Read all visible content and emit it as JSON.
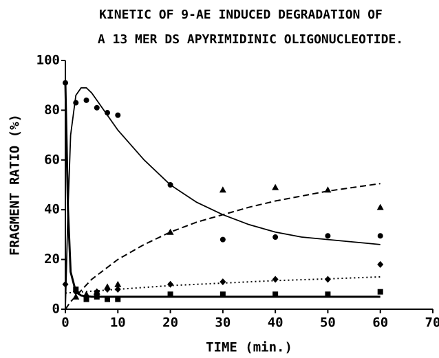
{
  "chart_data": {
    "type": "scatter",
    "title": [
      "KINETIC OF 9-AE INDUCED DEGRADATION OF",
      "A 13 MER DS APYRIMIDINIC OLIGONUCLEOTIDE."
    ],
    "x_label": "TIME (min.)",
    "y_label": "FRAGMENT RATIO (%)",
    "xlim": [
      0,
      70
    ],
    "xticks": [
      0,
      10,
      20,
      30,
      40,
      50,
      60,
      70
    ],
    "ylim": [
      0,
      100
    ],
    "yticks": [
      0,
      20,
      40,
      60,
      80,
      100
    ],
    "color": "#000000",
    "series": [
      {
        "marker": "circle",
        "x": [
          0,
          2,
          4,
          6,
          8,
          10,
          20,
          30,
          40,
          50,
          60
        ],
        "values": [
          91,
          83,
          84,
          81,
          79,
          78,
          50,
          28,
          29,
          29.5,
          29.5
        ]
      },
      {
        "marker": "triangle",
        "x": [
          2,
          4,
          6,
          8,
          10,
          20,
          30,
          40,
          50,
          60
        ],
        "values": [
          5,
          6,
          7,
          9,
          10,
          31,
          48,
          49,
          48,
          41
        ]
      },
      {
        "marker": "diamond",
        "x": [
          0,
          2,
          4,
          6,
          8,
          10,
          20,
          30,
          40,
          50,
          60
        ],
        "values": [
          10,
          7,
          5,
          7,
          8,
          8,
          10,
          11,
          12,
          12,
          18
        ]
      },
      {
        "marker": "square",
        "x": [
          2,
          4,
          6,
          8,
          10,
          20,
          30,
          40,
          50,
          60
        ],
        "values": [
          8,
          4,
          5,
          4,
          4,
          6,
          6,
          6,
          6,
          7
        ]
      }
    ],
    "curves": [
      {
        "style": "solid",
        "x": [
          0,
          0.5,
          1,
          2,
          3,
          4,
          5,
          6,
          8,
          10,
          15,
          20,
          25,
          30,
          35,
          40,
          45,
          50,
          55,
          60
        ],
        "values": [
          0,
          40,
          70,
          86,
          89,
          89,
          87,
          84,
          78,
          72,
          60,
          50,
          43,
          38,
          34,
          31,
          29,
          28,
          27,
          26
        ]
      },
      {
        "style": "bold",
        "x": [
          0,
          0.5,
          1,
          2,
          3,
          5,
          10,
          20,
          30,
          40,
          50,
          60
        ],
        "values": [
          91,
          40,
          15,
          7,
          5.5,
          5,
          5,
          5,
          5,
          5,
          5,
          5
        ]
      },
      {
        "style": "dashed",
        "x": [
          0,
          1,
          5,
          10,
          15,
          20,
          25,
          30,
          35,
          40,
          45,
          50,
          55,
          60
        ],
        "values": [
          0,
          3,
          12,
          20,
          26,
          31,
          35,
          38,
          41,
          43.5,
          45.5,
          47.5,
          49,
          50.5
        ]
      },
      {
        "style": "dotted",
        "x": [
          0,
          10,
          20,
          30,
          40,
          50,
          60
        ],
        "values": [
          6.5,
          8,
          9.5,
          10.5,
          11.5,
          12.2,
          13
        ]
      }
    ]
  }
}
